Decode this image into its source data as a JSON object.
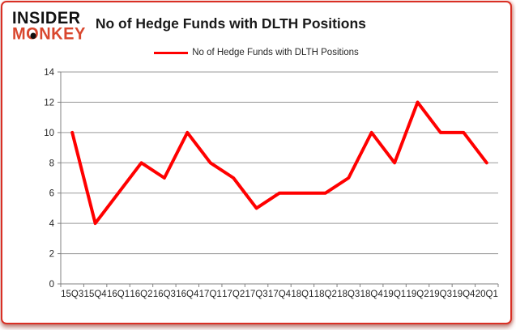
{
  "header": {
    "logo_line1": "INSIDER",
    "logo_line2_pre": "M",
    "logo_line2_o": "O",
    "logo_line2_post": "NKEY",
    "title": "No of Hedge Funds with DLTH Positions"
  },
  "legend": {
    "label": "No of Hedge Funds with DLTH Positions",
    "line_color": "#ff0000"
  },
  "chart_data": {
    "type": "line",
    "title": "No of Hedge Funds with DLTH Positions",
    "categories": [
      "15Q3",
      "15Q4",
      "16Q1",
      "16Q2",
      "16Q3",
      "16Q4",
      "17Q1",
      "17Q2",
      "17Q3",
      "17Q4",
      "18Q1",
      "18Q2",
      "18Q3",
      "18Q4",
      "19Q1",
      "19Q2",
      "19Q3",
      "19Q4",
      "20Q1"
    ],
    "series": [
      {
        "name": "No of Hedge Funds with DLTH Positions",
        "color": "#ff0000",
        "values": [
          10,
          4,
          6,
          8,
          7,
          10,
          8,
          7,
          5,
          6,
          6,
          6,
          7,
          10,
          8,
          12,
          10,
          10,
          8
        ]
      }
    ],
    "xlabel": "",
    "ylabel": "",
    "ylim": [
      0,
      14
    ],
    "yticks": [
      0,
      2,
      4,
      6,
      8,
      10,
      12,
      14
    ],
    "grid": true,
    "legend_position": "top-center"
  },
  "colors": {
    "accent_red": "#ff0000",
    "logo_red": "#d9472e",
    "border_red": "#d93025",
    "gridline": "#9a9a9a",
    "axis": "#808080",
    "tick_text": "#262626"
  }
}
